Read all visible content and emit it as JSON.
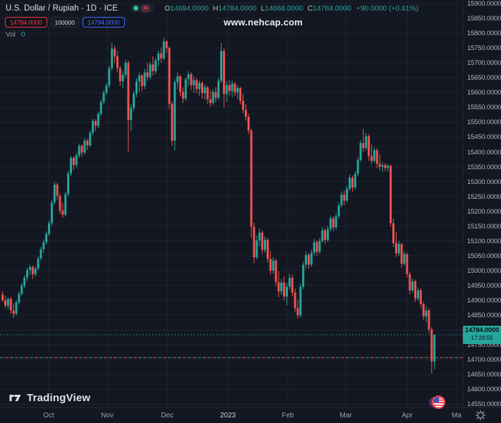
{
  "header": {
    "symbol_title": "U.S. Dollar / Rupiah · 1D · ICE",
    "ohlc": {
      "o_label": "O",
      "o_value": "14694.0000",
      "h_label": "H",
      "h_value": "14784.0000",
      "l_label": "L",
      "l_value": "14668.0000",
      "c_label": "C",
      "c_value": "14784.0000",
      "change": "+90.0000 (+0.61%)"
    },
    "sell_price": "14784.0000",
    "quantity": "100000",
    "buy_price": "14794.0000",
    "vol_label": "Vol",
    "vol_value": "0",
    "watermark": "www.nehcap.com"
  },
  "price_tag": {
    "price": "14784.0000",
    "countdown": "17:28:55"
  },
  "price_scale": {
    "labels": [
      "15900.0000",
      "15850.0000",
      "15800.0000",
      "15750.0000",
      "15700.0000",
      "15650.0000",
      "15600.0000",
      "15550.0000",
      "15500.0000",
      "15450.0000",
      "15400.0000",
      "15350.0000",
      "15300.0000",
      "15250.0000",
      "15200.0000",
      "15150.0000",
      "15100.0000",
      "15050.0000",
      "15000.0000",
      "14950.0000",
      "14900.0000",
      "14850.0000",
      "14800.0000",
      "14750.0000",
      "14700.0000",
      "14650.0000",
      "14600.0000",
      "14550.0000"
    ]
  },
  "time_scale": {
    "labels": [
      "Oct",
      "Nov",
      "Dec",
      "2023",
      "Feb",
      "Mar",
      "Apr",
      "Ma"
    ],
    "positions_x": [
      69,
      152,
      237,
      323,
      408,
      490,
      577,
      647
    ]
  },
  "footer": {
    "logo_text": "TradingView"
  },
  "icons": {
    "toggle_dot": "market-status-green-dot",
    "toggle_waves": "pink-wave-lines",
    "calendar_event": "us-flag-circle",
    "axis_settings": "gear"
  },
  "colors": {
    "background": "#131722",
    "up": "#26a69a",
    "down": "#ef5350",
    "grid": "rgba(244,247,253,0.055)",
    "separator": "#232836",
    "axis_text": "#b2b5be",
    "tag_bg": "#26a69a",
    "tag_text": "#0c1320",
    "sell_red": "#f23645",
    "buy_blue": "#3b6dff",
    "price_line": "#26a69a",
    "prev_close_line_red": "#ef5350",
    "prev_close_line_teal": "#26a69a"
  },
  "chart_data": {
    "type": "candlestick",
    "title": "U.S. Dollar / Rupiah",
    "timeframe": "1D",
    "exchange": "ICE",
    "ohlc_today": {
      "open": 14694,
      "high": 14784,
      "low": 14668,
      "close": 14784,
      "change": "+90.0000",
      "change_pct": "+0.61%"
    },
    "y_axis": {
      "min": 14550,
      "max": 15900,
      "step": 50
    },
    "x_axis": {
      "labels": [
        "Oct",
        "Nov",
        "Dec",
        "2023",
        "Feb",
        "Mar",
        "Apr",
        "Ma"
      ],
      "label_x": [
        69,
        152,
        237,
        323,
        408,
        490,
        577,
        647
      ]
    },
    "price_line": 14784,
    "secondary_line": 14707,
    "candles": [
      [
        14920,
        14930,
        14895,
        14900
      ],
      [
        14900,
        14915,
        14875,
        14882
      ],
      [
        14882,
        14910,
        14870,
        14905
      ],
      [
        14905,
        14912,
        14855,
        14866
      ],
      [
        14866,
        14890,
        14840,
        14855
      ],
      [
        14855,
        14900,
        14848,
        14893
      ],
      [
        14893,
        14930,
        14885,
        14922
      ],
      [
        14922,
        14958,
        14915,
        14950
      ],
      [
        14950,
        14985,
        14940,
        14977
      ],
      [
        14977,
        15010,
        14965,
        15002
      ],
      [
        15002,
        15020,
        14985,
        15012
      ],
      [
        15012,
        15018,
        14972,
        14988
      ],
      [
        14988,
        15015,
        14980,
        15007
      ],
      [
        15007,
        15048,
        15000,
        15041
      ],
      [
        15041,
        15080,
        15035,
        15072
      ],
      [
        15072,
        15105,
        15060,
        15096
      ],
      [
        15096,
        15132,
        15088,
        15124
      ],
      [
        15124,
        15168,
        15116,
        15160
      ],
      [
        15160,
        15238,
        15152,
        15230
      ],
      [
        15230,
        15298,
        15222,
        15290
      ],
      [
        15290,
        15296,
        15238,
        15252
      ],
      [
        15252,
        15260,
        15190,
        15202
      ],
      [
        15202,
        15228,
        15178,
        15188
      ],
      [
        15188,
        15266,
        15182,
        15258
      ],
      [
        15258,
        15336,
        15250,
        15328
      ],
      [
        15328,
        15388,
        15320,
        15380
      ],
      [
        15380,
        15386,
        15340,
        15356
      ],
      [
        15356,
        15396,
        15348,
        15388
      ],
      [
        15388,
        15428,
        15380,
        15420
      ],
      [
        15420,
        15426,
        15382,
        15398
      ],
      [
        15398,
        15446,
        15390,
        15438
      ],
      [
        15438,
        15444,
        15406,
        15422
      ],
      [
        15422,
        15472,
        15415,
        15464
      ],
      [
        15464,
        15512,
        15456,
        15504
      ],
      [
        15504,
        15510,
        15470,
        15488
      ],
      [
        15488,
        15536,
        15480,
        15528
      ],
      [
        15528,
        15576,
        15520,
        15568
      ],
      [
        15568,
        15608,
        15560,
        15600
      ],
      [
        15600,
        15632,
        15592,
        15624
      ],
      [
        15624,
        15690,
        15615,
        15682
      ],
      [
        15682,
        15768,
        15674,
        15748
      ],
      [
        15748,
        15758,
        15700,
        15722
      ],
      [
        15722,
        15742,
        15668,
        15682
      ],
      [
        15682,
        15690,
        15622,
        15638
      ],
      [
        15638,
        15672,
        15615,
        15660
      ],
      [
        15660,
        15712,
        15650,
        15700
      ],
      [
        15700,
        15708,
        15400,
        15508
      ],
      [
        15508,
        15560,
        15470,
        15548
      ],
      [
        15548,
        15605,
        15538,
        15596
      ],
      [
        15596,
        15648,
        15585,
        15638
      ],
      [
        15638,
        15668,
        15600,
        15658
      ],
      [
        15658,
        15662,
        15605,
        15622
      ],
      [
        15622,
        15680,
        15612,
        15668
      ],
      [
        15668,
        15700,
        15640,
        15652
      ],
      [
        15652,
        15704,
        15645,
        15695
      ],
      [
        15695,
        15722,
        15658,
        15672
      ],
      [
        15672,
        15718,
        15662,
        15708
      ],
      [
        15708,
        15742,
        15688,
        15732
      ],
      [
        15732,
        15752,
        15700,
        15715
      ],
      [
        15715,
        15785,
        15708,
        15772
      ],
      [
        15772,
        15778,
        15735,
        15750
      ],
      [
        15750,
        15755,
        15545,
        15562
      ],
      [
        15562,
        15570,
        15420,
        15438
      ],
      [
        15438,
        15645,
        15405,
        15635
      ],
      [
        15635,
        15668,
        15612,
        15655
      ],
      [
        15655,
        15660,
        15588,
        15602
      ],
      [
        15602,
        15618,
        15565,
        15580
      ],
      [
        15580,
        15652,
        15572,
        15645
      ],
      [
        15645,
        15672,
        15622,
        15662
      ],
      [
        15662,
        15668,
        15608,
        15625
      ],
      [
        15625,
        15655,
        15600,
        15642
      ],
      [
        15642,
        15648,
        15598,
        15612
      ],
      [
        15612,
        15640,
        15590,
        15632
      ],
      [
        15632,
        15638,
        15580,
        15598
      ],
      [
        15598,
        15628,
        15575,
        15618
      ],
      [
        15618,
        15622,
        15562,
        15578
      ],
      [
        15578,
        15608,
        15552,
        15565
      ],
      [
        15565,
        15612,
        15558,
        15602
      ],
      [
        15602,
        15618,
        15568,
        15582
      ],
      [
        15582,
        15650,
        15575,
        15640
      ],
      [
        15640,
        15767,
        15632,
        15740
      ],
      [
        15740,
        15748,
        15551,
        15595
      ],
      [
        15595,
        15638,
        15568,
        15625
      ],
      [
        15625,
        15642,
        15590,
        15605
      ],
      [
        15605,
        15640,
        15585,
        15630
      ],
      [
        15630,
        15636,
        15588,
        15600
      ],
      [
        15600,
        15625,
        15578,
        15615
      ],
      [
        15615,
        15620,
        15560,
        15572
      ],
      [
        15572,
        15596,
        15530,
        15542
      ],
      [
        15542,
        15560,
        15505,
        15518
      ],
      [
        15518,
        15528,
        15460,
        15472
      ],
      [
        15472,
        15478,
        15110,
        15148
      ],
      [
        15148,
        15162,
        15025,
        15045
      ],
      [
        15045,
        15118,
        15038,
        15102
      ],
      [
        15102,
        15142,
        15082,
        15128
      ],
      [
        15128,
        15135,
        15055,
        15070
      ],
      [
        15070,
        15116,
        15060,
        15104
      ],
      [
        15104,
        15110,
        15026,
        15040
      ],
      [
        15040,
        15066,
        14986,
        15000
      ],
      [
        15000,
        15046,
        14990,
        15034
      ],
      [
        15034,
        15040,
        14948,
        14962
      ],
      [
        14962,
        14998,
        14910,
        14930
      ],
      [
        14930,
        14972,
        14918,
        14960
      ],
      [
        14960,
        14982,
        14900,
        14913
      ],
      [
        14913,
        14958,
        14883,
        14946
      ],
      [
        14946,
        14990,
        14936,
        14976
      ],
      [
        14976,
        14986,
        14913,
        14926
      ],
      [
        14926,
        14940,
        14860,
        14873
      ],
      [
        14873,
        14903,
        14839,
        14850
      ],
      [
        14850,
        14956,
        14843,
        14946
      ],
      [
        14946,
        15030,
        14938,
        15020
      ],
      [
        15020,
        15066,
        15006,
        15053
      ],
      [
        15053,
        15060,
        15006,
        15020
      ],
      [
        15020,
        15070,
        15013,
        15060
      ],
      [
        15060,
        15108,
        15050,
        15096
      ],
      [
        15096,
        15103,
        15050,
        15063
      ],
      [
        15063,
        15110,
        15056,
        15100
      ],
      [
        15100,
        15146,
        15093,
        15136
      ],
      [
        15136,
        15142,
        15090,
        15103
      ],
      [
        15103,
        15150,
        15096,
        15140
      ],
      [
        15140,
        15186,
        15133,
        15176
      ],
      [
        15176,
        15183,
        15133,
        15146
      ],
      [
        15146,
        15193,
        15138,
        15183
      ],
      [
        15183,
        15230,
        15176,
        15220
      ],
      [
        15220,
        15266,
        15213,
        15256
      ],
      [
        15256,
        15270,
        15220,
        15236
      ],
      [
        15236,
        15286,
        15228,
        15276
      ],
      [
        15276,
        15323,
        15268,
        15313
      ],
      [
        15313,
        15320,
        15266,
        15280
      ],
      [
        15280,
        15336,
        15273,
        15326
      ],
      [
        15326,
        15383,
        15318,
        15373
      ],
      [
        15373,
        15440,
        15366,
        15430
      ],
      [
        15430,
        15478,
        15400,
        15413
      ],
      [
        15413,
        15463,
        15406,
        15453
      ],
      [
        15453,
        15460,
        15370,
        15386
      ],
      [
        15386,
        15426,
        15358,
        15370
      ],
      [
        15370,
        15418,
        15363,
        15406
      ],
      [
        15406,
        15413,
        15346,
        15360
      ],
      [
        15360,
        15393,
        15338,
        15350
      ],
      [
        15350,
        15366,
        15333,
        15356
      ],
      [
        15356,
        15363,
        15336,
        15346
      ],
      [
        15346,
        15360,
        15333,
        15353
      ],
      [
        15353,
        15358,
        15148,
        15160
      ],
      [
        15160,
        15176,
        15080,
        15093
      ],
      [
        15093,
        15130,
        15046,
        15058
      ],
      [
        15058,
        15100,
        15050,
        15090
      ],
      [
        15090,
        15094,
        15010,
        15023
      ],
      [
        15023,
        15066,
        15016,
        15056
      ],
      [
        15056,
        15060,
        14976,
        14988
      ],
      [
        14988,
        14996,
        14920,
        14933
      ],
      [
        14933,
        14973,
        14926,
        14964
      ],
      [
        14964,
        14970,
        14894,
        14906
      ],
      [
        14906,
        14943,
        14898,
        14934
      ],
      [
        14934,
        14940,
        14876,
        14888
      ],
      [
        14888,
        14896,
        14834,
        14846
      ],
      [
        14846,
        14880,
        14826,
        14866
      ],
      [
        14866,
        14872,
        14790,
        14802
      ],
      [
        14802,
        14810,
        14653,
        14694
      ],
      [
        14694,
        14784,
        14668,
        14784
      ]
    ]
  }
}
